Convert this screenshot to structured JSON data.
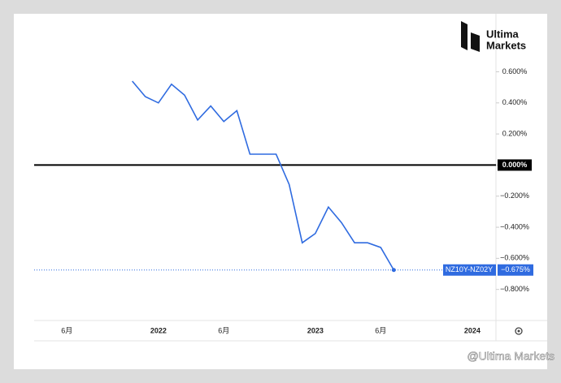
{
  "chart_data": {
    "type": "line",
    "brand": "Ultima Markets",
    "brand_lines": [
      "Ultima",
      "Markets"
    ],
    "watermark": "@Ultima Markets",
    "x": [
      "2021-11",
      "2021-12",
      "2022-01",
      "2022-02",
      "2022-03",
      "2022-04",
      "2022-05",
      "2022-06",
      "2022-07",
      "2022-08",
      "2022-09",
      "2022-10",
      "2022-11",
      "2022-12",
      "2023-01",
      "2023-02",
      "2023-03",
      "2023-04",
      "2023-05",
      "2023-06",
      "2023-07"
    ],
    "series": [
      {
        "name": "NZ10Y-NZ02Y",
        "color": "#2f6be0",
        "values": [
          0.54,
          0.44,
          0.4,
          0.52,
          0.45,
          0.29,
          0.38,
          0.28,
          0.35,
          0.07,
          0.07,
          0.07,
          -0.125,
          -0.5,
          -0.44,
          -0.27,
          -0.37,
          -0.5,
          -0.5,
          -0.53,
          -0.675
        ],
        "value_labels": [
          null,
          null,
          null,
          null,
          null,
          null,
          null,
          null,
          null,
          null,
          null,
          null,
          null,
          null,
          null,
          null,
          null,
          null,
          null,
          null,
          "−0.675%"
        ]
      }
    ],
    "xlim": [
      "2021-03",
      "2024-03"
    ],
    "xticks": [
      {
        "value": "2021-06",
        "label": "6月"
      },
      {
        "value": "2022-01",
        "label": "2022"
      },
      {
        "value": "2022-06",
        "label": "6月"
      },
      {
        "value": "2023-01",
        "label": "2023"
      },
      {
        "value": "2023-06",
        "label": "6月"
      },
      {
        "value": "2024-01",
        "label": "2024"
      }
    ],
    "ylim": [
      -1.0,
      0.9
    ],
    "yticks": [
      {
        "value": 0.6,
        "label": "0.600%"
      },
      {
        "value": 0.4,
        "label": "0.400%"
      },
      {
        "value": 0.2,
        "label": "0.200%"
      },
      {
        "value": 0,
        "label": "0.000%"
      },
      {
        "value": -0.2,
        "label": "−0.200%"
      },
      {
        "value": -0.4,
        "label": "−0.400%"
      },
      {
        "value": -0.6,
        "label": "−0.600%"
      },
      {
        "value": -0.8,
        "label": "−0.800%"
      }
    ],
    "hline": 0,
    "grid": false
  }
}
